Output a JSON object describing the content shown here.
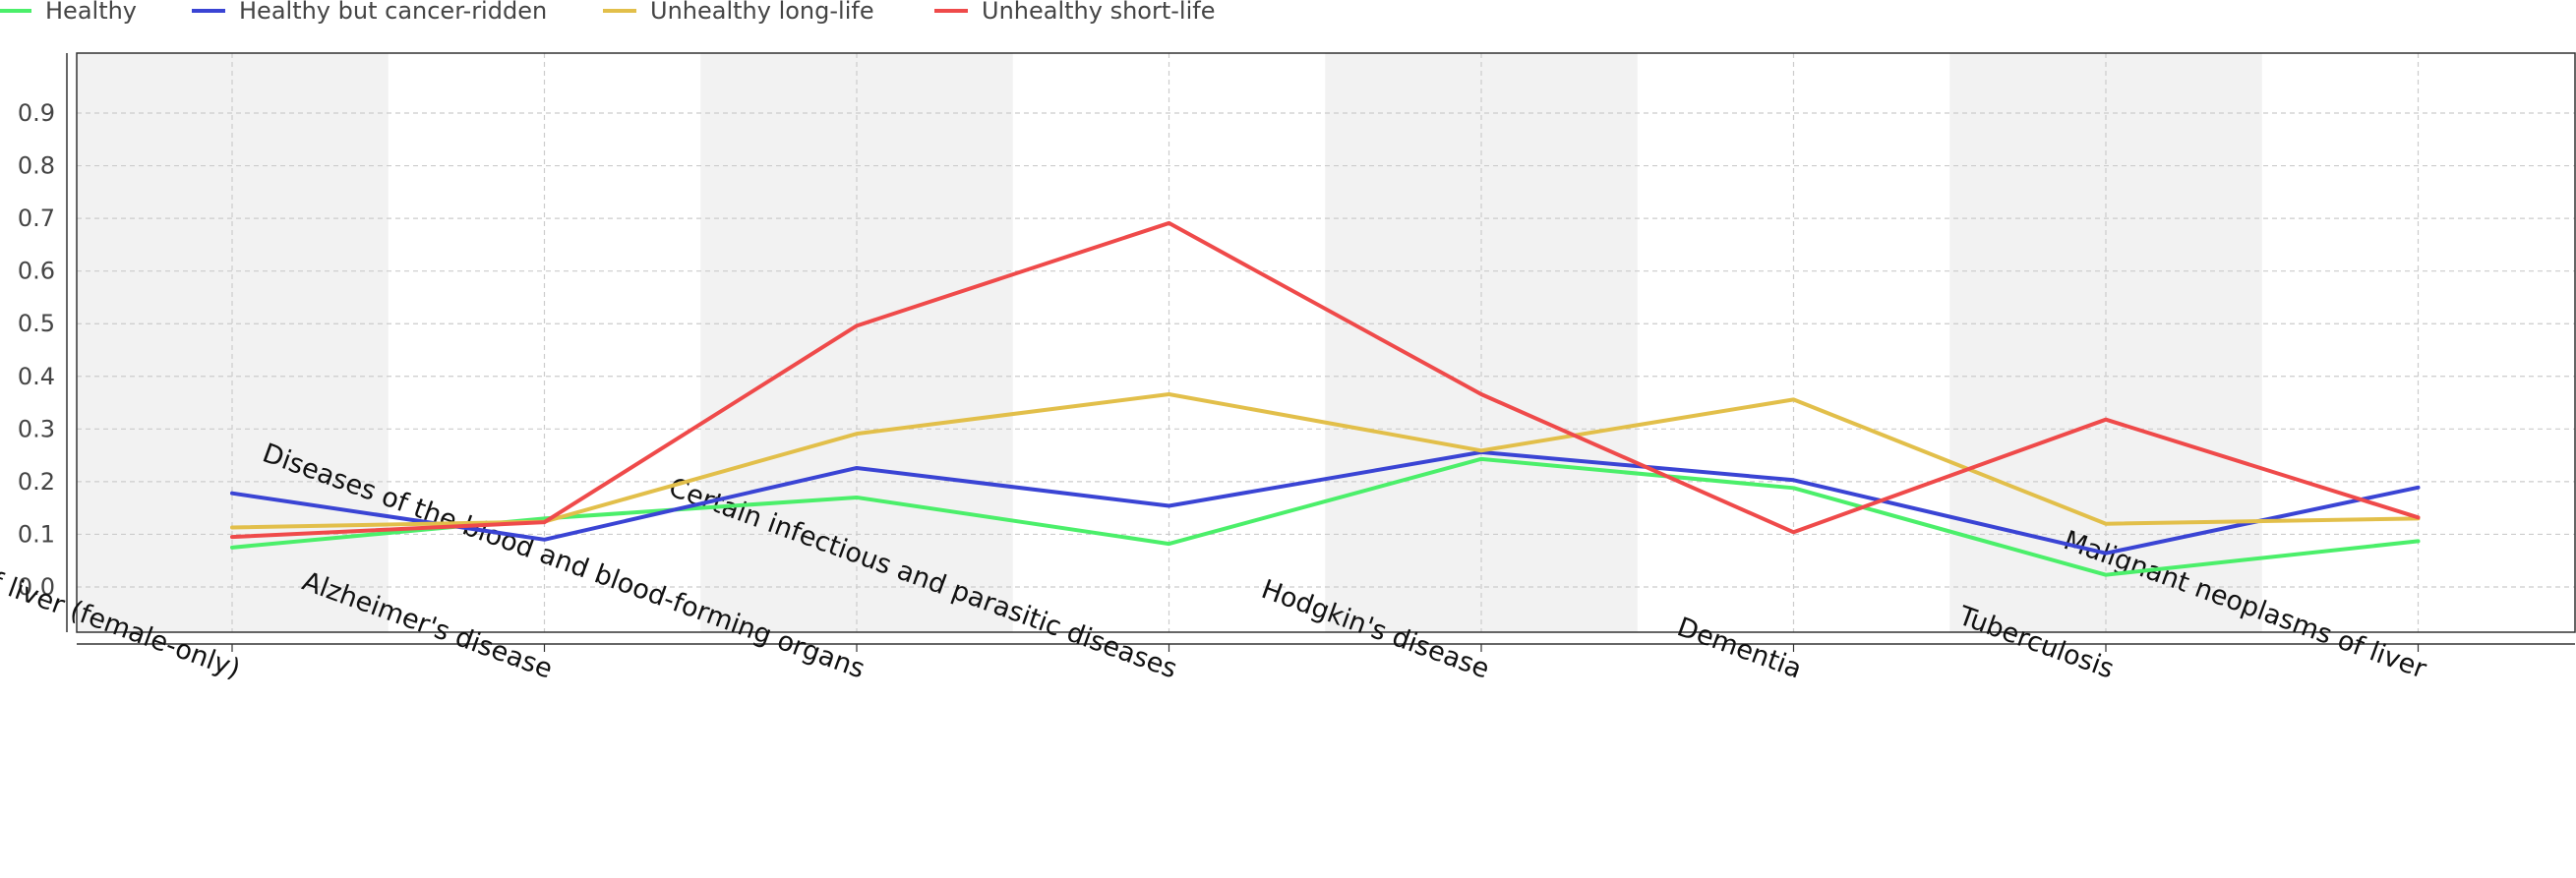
{
  "chart_data": {
    "type": "line",
    "categories": [
      "Malignant neoplasms of liver (female-only)",
      "Alzheimer's disease",
      "Diseases of the blood and blood-forming organs",
      "Certain infectious and parasitic diseases",
      "Hodgkin's disease",
      "Dementia",
      "Tuberculosis",
      "Malignant neoplasms of liver"
    ],
    "series": [
      {
        "name": "Healthy",
        "color": "#4bef6a",
        "values": [
          0.075,
          0.13,
          0.17,
          0.082,
          0.243,
          0.188,
          0.023,
          0.087
        ]
      },
      {
        "name": "Healthy but cancer-ridden",
        "color": "#3a44d4",
        "values": [
          0.178,
          0.09,
          0.226,
          0.154,
          0.256,
          0.203,
          0.064,
          0.189
        ]
      },
      {
        "name": "Unhealthy long-life",
        "color": "#e2bf4a",
        "values": [
          0.113,
          0.124,
          0.291,
          0.366,
          0.259,
          0.356,
          0.12,
          0.13
        ]
      },
      {
        "name": "Unhealthy short-life",
        "color": "#ef4a4a",
        "values": [
          0.095,
          0.123,
          0.496,
          0.691,
          0.366,
          0.104,
          0.318,
          0.132
        ]
      }
    ],
    "yticks": [
      "0.0",
      "0.1",
      "0.2",
      "0.3",
      "0.4",
      "0.5",
      "0.6",
      "0.7",
      "0.8",
      "0.9"
    ],
    "ylim": [
      -0.075,
      0.9
    ],
    "grid": true,
    "legend_position": "top-left",
    "title": "",
    "xlabel": "",
    "ylabel": ""
  }
}
